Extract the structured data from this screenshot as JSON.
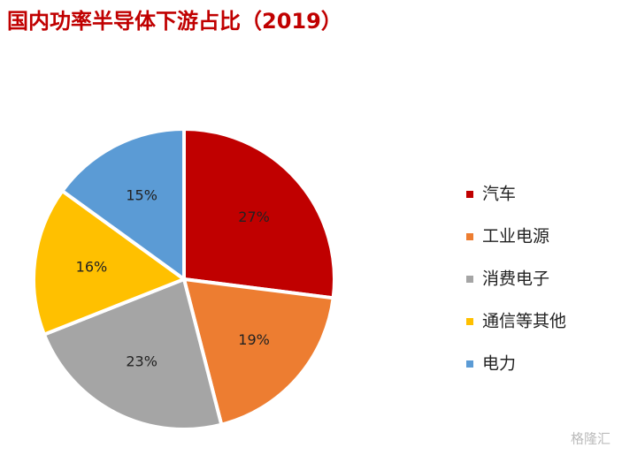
{
  "chart_data": {
    "type": "pie",
    "title": "国内功率半导体下游占比（2019）",
    "categories": [
      "汽车",
      "工业电源",
      "消费电子",
      "通信等其他",
      "电力"
    ],
    "values": [
      27,
      19,
      23,
      16,
      15
    ],
    "value_labels": [
      "27%",
      "19%",
      "23%",
      "16%",
      "15%"
    ],
    "colors": [
      "#c00000",
      "#ed7d31",
      "#a5a5a5",
      "#ffc000",
      "#5b9bd5"
    ],
    "legend": "right"
  },
  "watermark": "格隆汇"
}
